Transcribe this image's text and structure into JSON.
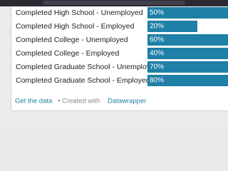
{
  "chart_data": {
    "type": "bar",
    "categories": [
      "Completed High School - Unemployed",
      "Completed High School - Employed",
      "Completed College - Unemployed",
      "Completed College - Employed",
      "Completed Graduate School - Unemployed",
      "Completed Graduate School - Employed"
    ],
    "values": [
      50,
      20,
      60,
      40,
      70,
      80
    ],
    "value_labels": [
      "50%",
      "20%",
      "60%",
      "40%",
      "70%",
      "80%"
    ],
    "color": "#1f7fa6",
    "xlim": [
      0,
      100
    ]
  },
  "footer": {
    "data_link": "Get the data",
    "separator": "• Created with",
    "credit_link": "Datawrapper"
  }
}
